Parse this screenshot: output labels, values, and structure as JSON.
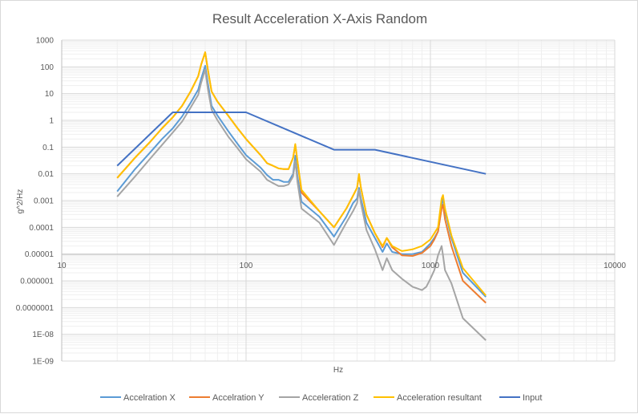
{
  "chart_data": {
    "type": "line",
    "title": "Result Acceleration X-Axis Random",
    "xlabel": "Hz",
    "ylabel": "g^2/Hz",
    "x_scale": "log",
    "y_scale": "log",
    "xlim": [
      10,
      10000
    ],
    "ylim": [
      1e-09,
      1000
    ],
    "x_ticks": [
      {
        "value": 10,
        "label": "10"
      },
      {
        "value": 100,
        "label": "100"
      },
      {
        "value": 1000,
        "label": "1000"
      },
      {
        "value": 10000,
        "label": "10000"
      }
    ],
    "y_ticks": [
      {
        "value": 1000,
        "label": "1000"
      },
      {
        "value": 100,
        "label": "100"
      },
      {
        "value": 10,
        "label": "10"
      },
      {
        "value": 1,
        "label": "1"
      },
      {
        "value": 0.1,
        "label": "0.1"
      },
      {
        "value": 0.01,
        "label": "0.01"
      },
      {
        "value": 0.001,
        "label": "0.001"
      },
      {
        "value": 0.0001,
        "label": "0.0001"
      },
      {
        "value": 1e-05,
        "label": "0.00001"
      },
      {
        "value": 1e-06,
        "label": "0.000001"
      },
      {
        "value": 1e-07,
        "label": "0.0000001"
      },
      {
        "value": 1e-08,
        "label": "1E-08"
      },
      {
        "value": 1e-09,
        "label": "1E-09"
      }
    ],
    "grid": true,
    "minor_grid": true,
    "legend_position": "bottom",
    "series": [
      {
        "name": "Accelration X",
        "color": "#5b9bd5",
        "points": [
          [
            20,
            0.0022
          ],
          [
            25,
            0.015
          ],
          [
            30,
            0.06
          ],
          [
            35,
            0.2
          ],
          [
            40,
            0.5
          ],
          [
            45,
            1.4
          ],
          [
            50,
            4.5
          ],
          [
            55,
            14
          ],
          [
            57,
            35
          ],
          [
            60,
            110
          ],
          [
            62,
            25
          ],
          [
            65,
            3.5
          ],
          [
            70,
            1.5
          ],
          [
            80,
            0.4
          ],
          [
            90,
            0.13
          ],
          [
            100,
            0.05
          ],
          [
            120,
            0.017
          ],
          [
            130,
            0.009
          ],
          [
            140,
            0.006
          ],
          [
            150,
            0.006
          ],
          [
            160,
            0.005
          ],
          [
            170,
            0.005
          ],
          [
            180,
            0.01
          ],
          [
            185,
            0.048
          ],
          [
            190,
            0.008
          ],
          [
            200,
            0.0009
          ],
          [
            250,
            0.00025
          ],
          [
            300,
            4.5e-05
          ],
          [
            350,
            0.00025
          ],
          [
            380,
            0.0008
          ],
          [
            400,
            0.0012
          ],
          [
            410,
            0.003
          ],
          [
            420,
            0.0012
          ],
          [
            450,
            0.00015
          ],
          [
            500,
            4e-05
          ],
          [
            550,
            1.2e-05
          ],
          [
            580,
            2.5e-05
          ],
          [
            620,
            1.2e-05
          ],
          [
            700,
            1e-05
          ],
          [
            800,
            1e-05
          ],
          [
            900,
            1.2e-05
          ],
          [
            1000,
            2.5e-05
          ],
          [
            1050,
            4e-05
          ],
          [
            1100,
            7e-05
          ],
          [
            1150,
            0.0006
          ],
          [
            1170,
            0.0014
          ],
          [
            1200,
            0.0004
          ],
          [
            1300,
            4e-05
          ],
          [
            1500,
            2e-06
          ],
          [
            2000,
            2.5e-07
          ]
        ]
      },
      {
        "name": "Accelration Y",
        "color": "#ed7d31",
        "points": [
          [
            20,
            0.007
          ],
          [
            25,
            0.04
          ],
          [
            30,
            0.15
          ],
          [
            35,
            0.5
          ],
          [
            40,
            1.3
          ],
          [
            45,
            3.5
          ],
          [
            50,
            12
          ],
          [
            55,
            45
          ],
          [
            57,
            120
          ],
          [
            60,
            350
          ],
          [
            62,
            80
          ],
          [
            65,
            12
          ],
          [
            70,
            5
          ],
          [
            80,
            1.5
          ],
          [
            90,
            0.5
          ],
          [
            100,
            0.2
          ],
          [
            120,
            0.05
          ],
          [
            130,
            0.025
          ],
          [
            140,
            0.02
          ],
          [
            150,
            0.016
          ],
          [
            160,
            0.015
          ],
          [
            170,
            0.015
          ],
          [
            180,
            0.04
          ],
          [
            185,
            0.12
          ],
          [
            190,
            0.03
          ],
          [
            200,
            0.002
          ],
          [
            250,
            0.0004
          ],
          [
            300,
            0.0001
          ],
          [
            350,
            0.0005
          ],
          [
            380,
            0.0015
          ],
          [
            400,
            0.003
          ],
          [
            410,
            0.009
          ],
          [
            420,
            0.003
          ],
          [
            450,
            0.0003
          ],
          [
            500,
            6e-05
          ],
          [
            550,
            1.8e-05
          ],
          [
            580,
            4e-05
          ],
          [
            620,
            1.8e-05
          ],
          [
            700,
            9e-06
          ],
          [
            800,
            8.5e-06
          ],
          [
            900,
            1.1e-05
          ],
          [
            1000,
            2e-05
          ],
          [
            1050,
            3.5e-05
          ],
          [
            1100,
            7e-05
          ],
          [
            1150,
            0.0005
          ],
          [
            1170,
            0.0007
          ],
          [
            1200,
            0.0002
          ],
          [
            1300,
            2e-05
          ],
          [
            1500,
            1e-06
          ],
          [
            2000,
            1.5e-07
          ]
        ]
      },
      {
        "name": "Acceleration Z",
        "color": "#a5a5a5",
        "points": [
          [
            20,
            0.0014
          ],
          [
            25,
            0.008
          ],
          [
            30,
            0.035
          ],
          [
            35,
            0.12
          ],
          [
            40,
            0.35
          ],
          [
            45,
            0.9
          ],
          [
            50,
            3
          ],
          [
            55,
            9
          ],
          [
            57,
            25
          ],
          [
            60,
            80
          ],
          [
            62,
            15
          ],
          [
            65,
            2.5
          ],
          [
            70,
            1
          ],
          [
            80,
            0.25
          ],
          [
            90,
            0.09
          ],
          [
            100,
            0.035
          ],
          [
            120,
            0.012
          ],
          [
            130,
            0.006
          ],
          [
            140,
            0.0045
          ],
          [
            150,
            0.0035
          ],
          [
            160,
            0.0035
          ],
          [
            170,
            0.004
          ],
          [
            180,
            0.008
          ],
          [
            185,
            0.03
          ],
          [
            190,
            0.005
          ],
          [
            200,
            0.0005
          ],
          [
            250,
            0.00015
          ],
          [
            300,
            2.2e-05
          ],
          [
            350,
            0.00015
          ],
          [
            380,
            0.0004
          ],
          [
            400,
            0.0008
          ],
          [
            410,
            0.0025
          ],
          [
            420,
            0.0008
          ],
          [
            450,
            8e-05
          ],
          [
            500,
            1.5e-05
          ],
          [
            550,
            2.5e-06
          ],
          [
            580,
            7e-06
          ],
          [
            620,
            2.5e-06
          ],
          [
            700,
            1.2e-06
          ],
          [
            800,
            6e-07
          ],
          [
            900,
            4.5e-07
          ],
          [
            950,
            6e-07
          ],
          [
            1000,
            1.2e-06
          ],
          [
            1050,
            2.5e-06
          ],
          [
            1100,
            9e-06
          ],
          [
            1150,
            2e-05
          ],
          [
            1170,
            9e-06
          ],
          [
            1200,
            2.5e-06
          ],
          [
            1300,
            8e-07
          ],
          [
            1500,
            4e-08
          ],
          [
            2000,
            6e-09
          ]
        ]
      },
      {
        "name": "Acceleration resultant",
        "color": "#ffc000",
        "points": [
          [
            20,
            0.007
          ],
          [
            25,
            0.04
          ],
          [
            30,
            0.15
          ],
          [
            35,
            0.5
          ],
          [
            40,
            1.3
          ],
          [
            45,
            3.5
          ],
          [
            50,
            12
          ],
          [
            55,
            45
          ],
          [
            57,
            120
          ],
          [
            60,
            350
          ],
          [
            62,
            80
          ],
          [
            65,
            12
          ],
          [
            70,
            5
          ],
          [
            80,
            1.5
          ],
          [
            90,
            0.5
          ],
          [
            100,
            0.2
          ],
          [
            120,
            0.05
          ],
          [
            130,
            0.025
          ],
          [
            140,
            0.02
          ],
          [
            150,
            0.016
          ],
          [
            160,
            0.015
          ],
          [
            170,
            0.015
          ],
          [
            180,
            0.04
          ],
          [
            185,
            0.13
          ],
          [
            190,
            0.03
          ],
          [
            200,
            0.0025
          ],
          [
            250,
            0.0004
          ],
          [
            300,
            0.0001
          ],
          [
            350,
            0.0005
          ],
          [
            380,
            0.0015
          ],
          [
            400,
            0.003
          ],
          [
            410,
            0.01
          ],
          [
            420,
            0.003
          ],
          [
            450,
            0.0003
          ],
          [
            500,
            6e-05
          ],
          [
            550,
            2e-05
          ],
          [
            580,
            4e-05
          ],
          [
            620,
            2e-05
          ],
          [
            700,
            1.3e-05
          ],
          [
            800,
            1.5e-05
          ],
          [
            900,
            2e-05
          ],
          [
            1000,
            3.5e-05
          ],
          [
            1050,
            6e-05
          ],
          [
            1100,
            0.0001
          ],
          [
            1150,
            0.0012
          ],
          [
            1170,
            0.0016
          ],
          [
            1200,
            0.0005
          ],
          [
            1300,
            5e-05
          ],
          [
            1500,
            3e-06
          ],
          [
            2000,
            2.8e-07
          ]
        ]
      },
      {
        "name": "Input",
        "color": "#4472c4",
        "points": [
          [
            20,
            0.02
          ],
          [
            40,
            2
          ],
          [
            100,
            2
          ],
          [
            300,
            0.08
          ],
          [
            500,
            0.08
          ],
          [
            2000,
            0.01
          ]
        ]
      }
    ]
  }
}
